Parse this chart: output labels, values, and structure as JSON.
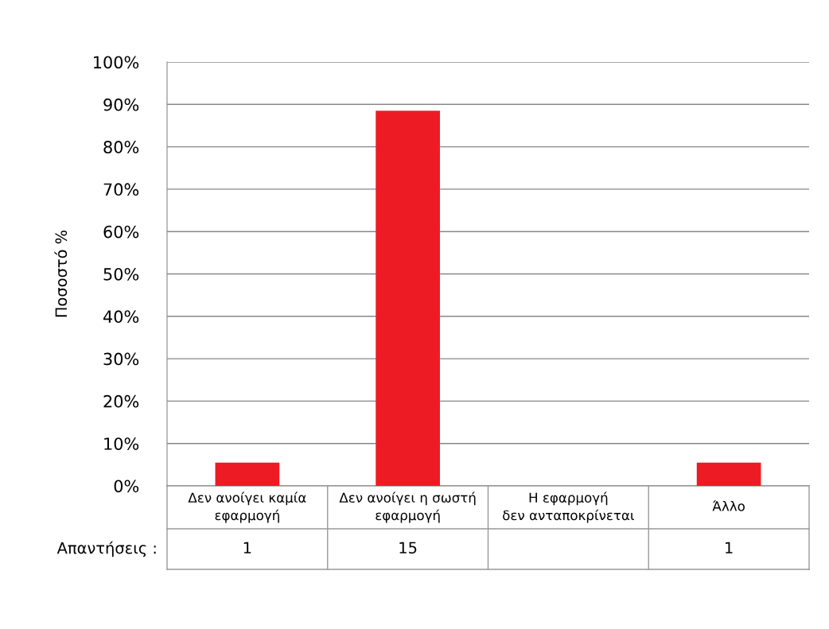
{
  "chart_data": {
    "type": "bar",
    "ylabel": "Ποσοστό %",
    "categories": [
      "Δεν ανοίγει καμία\nεφαρμογή",
      "Δεν ανοίγει η σωστή\nεφαρμογή",
      "Η εφαρμογή\nδεν ανταποκρίνεται",
      "Άλλο"
    ],
    "values": [
      5.5,
      88.5,
      0,
      5.5
    ],
    "color": "#ed1c24",
    "ylim": [
      0,
      100
    ],
    "yticks": [
      {
        "value": 0,
        "label": "0%"
      },
      {
        "value": 10,
        "label": "10%"
      },
      {
        "value": 20,
        "label": "20%"
      },
      {
        "value": 30,
        "label": "30%"
      },
      {
        "value": 40,
        "label": "40%"
      },
      {
        "value": 50,
        "label": "50%"
      },
      {
        "value": 60,
        "label": "60%"
      },
      {
        "value": 70,
        "label": "70%"
      },
      {
        "value": 80,
        "label": "80%"
      },
      {
        "value": 90,
        "label": "90%"
      },
      {
        "value": 100,
        "label": "100%"
      }
    ],
    "grid": "y",
    "annotations": [
      "Απαντήσεις :",
      "1",
      "15",
      "1"
    ]
  }
}
